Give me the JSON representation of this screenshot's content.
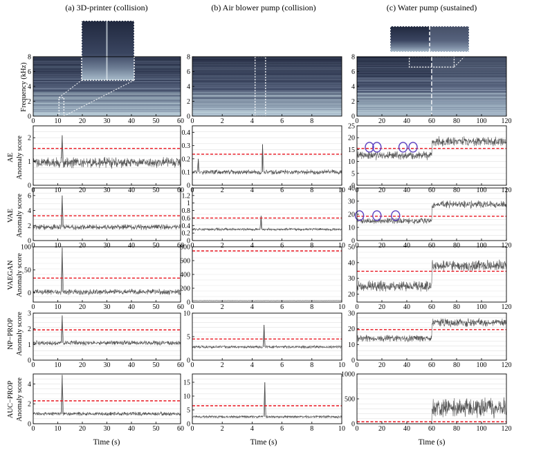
{
  "figure": {
    "column_titles": [
      "(a) 3D-printer (collision)",
      "(b) Air blower pump (collision)",
      "(c) Water pump (sustained)"
    ],
    "spectrogram_ylabel": "Frequency (kHz)",
    "row_ylabel_suffix": "Anomaly score",
    "x_label": "Time (s)"
  },
  "chart_data": [
    {
      "type": "heatmap",
      "column": 0,
      "row": "spectrogram",
      "ylabel": "Frequency (kHz)",
      "xlim": [
        0,
        60
      ],
      "xticks": [
        0,
        10,
        20,
        30,
        40,
        50,
        60
      ],
      "ylim": [
        0,
        8
      ],
      "yticks": [
        0,
        2,
        4,
        6,
        8
      ],
      "highlight_box": {
        "x": [
          10.5,
          12.5
        ],
        "y": [
          0,
          2.5
        ]
      },
      "zoom_inset": true
    },
    {
      "type": "heatmap",
      "column": 1,
      "row": "spectrogram",
      "xlim": [
        0,
        10
      ],
      "xticks": [
        0,
        2,
        4,
        6,
        8
      ],
      "ylim": [
        0,
        8
      ],
      "yticks": [
        0,
        2,
        4,
        6,
        8
      ],
      "highlight_box": {
        "x": [
          4.2,
          4.9
        ],
        "y": [
          0,
          8
        ]
      }
    },
    {
      "type": "heatmap",
      "column": 2,
      "row": "spectrogram",
      "xlim": [
        0,
        120
      ],
      "xticks": [
        0,
        20,
        40,
        60,
        80,
        100,
        120
      ],
      "ylim": [
        0,
        8
      ],
      "yticks": [
        0,
        2,
        4,
        6,
        8
      ],
      "divider_x": 60,
      "highlight_box": {
        "x": [
          42,
          78
        ],
        "y": [
          6.6,
          8
        ]
      },
      "zoom_inset": true
    },
    {
      "type": "line",
      "column": 0,
      "row": "AE",
      "ylabel": "AE",
      "xlim": [
        0,
        60
      ],
      "xticks": [
        0,
        10,
        20,
        30,
        40,
        50,
        60
      ],
      "ylim": [
        0,
        2.5
      ],
      "yticks": [
        0,
        1,
        2
      ],
      "threshold": 1.55,
      "baseline": 0.95,
      "noise": 0.18,
      "spikes": [
        {
          "x": 11.8,
          "y": 2.1
        }
      ]
    },
    {
      "type": "line",
      "column": 1,
      "row": "AE",
      "xlim": [
        0,
        10
      ],
      "xticks": [
        0,
        2,
        4,
        6,
        8,
        10
      ],
      "ylim": [
        0,
        0.45
      ],
      "yticks": [
        0,
        0.1,
        0.2,
        0.3,
        0.4
      ],
      "threshold": 0.235,
      "baseline": 0.1,
      "noise": 0.015,
      "spikes": [
        {
          "x": 0.4,
          "y": 0.2
        },
        {
          "x": 4.7,
          "y": 0.31
        }
      ]
    },
    {
      "type": "line",
      "column": 2,
      "row": "AE",
      "xlim": [
        0,
        120
      ],
      "xticks": [
        0,
        20,
        40,
        60,
        80,
        100,
        120
      ],
      "ylim": [
        0,
        25
      ],
      "yticks": [
        0,
        5,
        10,
        15,
        20,
        25
      ],
      "threshold": 15.5,
      "segments": [
        {
          "x": [
            0,
            60
          ],
          "baseline": 12.5,
          "noise": 1.5
        },
        {
          "x": [
            60,
            120
          ],
          "baseline": 18.5,
          "noise": 1.6
        }
      ],
      "circles": [
        {
          "x": 10,
          "y": 16
        },
        {
          "x": 16,
          "y": 16
        },
        {
          "x": 37,
          "y": 16
        },
        {
          "x": 45,
          "y": 16
        }
      ]
    },
    {
      "type": "line",
      "column": 0,
      "row": "VAE",
      "ylabel": "VAE",
      "xlim": [
        0,
        60
      ],
      "xticks": [
        0,
        10,
        20,
        30,
        40,
        50,
        60
      ],
      "ylim": [
        0,
        7
      ],
      "yticks": [
        0,
        2,
        4,
        6
      ],
      "threshold": 3.3,
      "baseline": 1.8,
      "noise": 0.3,
      "spikes": [
        {
          "x": 11.8,
          "y": 6.0
        }
      ]
    },
    {
      "type": "line",
      "column": 1,
      "row": "VAE",
      "xlim": [
        0,
        10
      ],
      "xticks": [
        0,
        2,
        4,
        6,
        8,
        10
      ],
      "ylim": [
        0,
        1.4
      ],
      "yticks": [
        0,
        0.2,
        0.4,
        0.6,
        0.8,
        1,
        1.2
      ],
      "threshold": 0.6,
      "baseline": 0.3,
      "noise": 0.03,
      "spikes": [
        {
          "x": 4.6,
          "y": 0.66
        }
      ]
    },
    {
      "type": "line",
      "column": 2,
      "row": "VAE",
      "xlim": [
        0,
        120
      ],
      "xticks": [
        0,
        20,
        40,
        60,
        80,
        100,
        120
      ],
      "ylim": [
        0,
        40
      ],
      "yticks": [
        0,
        10,
        20,
        30,
        40
      ],
      "threshold": 18.5,
      "segments": [
        {
          "x": [
            0,
            60
          ],
          "baseline": 15,
          "noise": 1.8
        },
        {
          "x": [
            60,
            120
          ],
          "baseline": 27.5,
          "noise": 2.4
        }
      ],
      "circles": [
        {
          "x": 2,
          "y": 19
        },
        {
          "x": 16,
          "y": 19
        },
        {
          "x": 31,
          "y": 19
        }
      ]
    },
    {
      "type": "line",
      "column": 0,
      "row": "VAEGAN",
      "ylabel": "VAEGAN",
      "xlim": [
        0,
        60
      ],
      "xticks": [
        0,
        10,
        20,
        30,
        40,
        50,
        60
      ],
      "ylim": [
        -20,
        100
      ],
      "yticks": [
        0,
        50,
        100
      ],
      "threshold": 32,
      "baseline": 2,
      "noise": 5,
      "spikes": [
        {
          "x": 11.8,
          "y": 98
        }
      ]
    },
    {
      "type": "line",
      "column": 1,
      "row": "VAEGAN",
      "xlim": [
        0,
        10
      ],
      "xticks": [
        0,
        2,
        4,
        6,
        8,
        10
      ],
      "ylim": [
        0,
        800
      ],
      "yticks": [
        0,
        200,
        400,
        600,
        800
      ],
      "threshold": 740,
      "baseline": 22,
      "noise": 1.5,
      "spikes": []
    },
    {
      "type": "line",
      "column": 2,
      "row": "VAEGAN",
      "xlim": [
        0,
        120
      ],
      "xticks": [
        0,
        20,
        40,
        60,
        80,
        100,
        120
      ],
      "ylim": [
        15,
        50
      ],
      "yticks": [
        20,
        30,
        40,
        50
      ],
      "threshold": 34.5,
      "segments": [
        {
          "x": [
            0,
            60
          ],
          "baseline": 25,
          "noise": 2.8
        },
        {
          "x": [
            60,
            120
          ],
          "baseline": 38,
          "noise": 3
        }
      ]
    },
    {
      "type": "line",
      "column": 0,
      "row": "NP-PROP",
      "ylabel": "NP−PROP",
      "xlim": [
        0,
        60
      ],
      "xticks": [
        0,
        10,
        20,
        30,
        40,
        50,
        60
      ],
      "ylim": [
        0,
        3
      ],
      "yticks": [
        0,
        1,
        2,
        3
      ],
      "threshold": 1.93,
      "baseline": 1.1,
      "noise": 0.12,
      "spikes": [
        {
          "x": 11.8,
          "y": 2.85
        }
      ]
    },
    {
      "type": "line",
      "column": 1,
      "row": "NP-PROP",
      "xlim": [
        0,
        10
      ],
      "xticks": [
        0,
        2,
        4,
        6,
        8,
        10
      ],
      "ylim": [
        0,
        10
      ],
      "yticks": [
        0,
        5,
        10
      ],
      "threshold": 4.5,
      "baseline": 2.8,
      "noise": 0.25,
      "spikes": [
        {
          "x": 4.8,
          "y": 7.5
        }
      ]
    },
    {
      "type": "line",
      "column": 2,
      "row": "NP-PROP",
      "xlim": [
        0,
        120
      ],
      "xticks": [
        0,
        20,
        40,
        60,
        80,
        100,
        120
      ],
      "ylim": [
        0,
        30
      ],
      "yticks": [
        0,
        10,
        20,
        30
      ],
      "threshold": 19.5,
      "segments": [
        {
          "x": [
            0,
            60
          ],
          "baseline": 14,
          "noise": 1.8
        },
        {
          "x": [
            60,
            120
          ],
          "baseline": 24,
          "noise": 2.2
        }
      ]
    },
    {
      "type": "line",
      "column": 0,
      "row": "AUC-PROP",
      "ylabel": "AUC−PROP",
      "xlim": [
        0,
        60
      ],
      "xticks": [
        0,
        10,
        20,
        30,
        40,
        50,
        60
      ],
      "ylim": [
        0,
        5
      ],
      "yticks": [
        0,
        2,
        4
      ],
      "threshold": 2.3,
      "baseline": 1.0,
      "noise": 0.15,
      "spikes": [
        {
          "x": 11.8,
          "y": 4.9
        }
      ]
    },
    {
      "type": "line",
      "column": 1,
      "row": "AUC-PROP",
      "xlim": [
        0,
        10
      ],
      "xticks": [
        0,
        2,
        4,
        6,
        8,
        10
      ],
      "ylim": [
        0,
        18
      ],
      "yticks": [
        0,
        5,
        10,
        15
      ],
      "threshold": 6.5,
      "baseline": 2.5,
      "noise": 0.4,
      "spikes": [
        {
          "x": 4.85,
          "y": 15
        }
      ]
    },
    {
      "type": "line",
      "column": 2,
      "row": "AUC-PROP",
      "xlim": [
        0,
        120
      ],
      "xticks": [
        0,
        20,
        40,
        60,
        80,
        100,
        120
      ],
      "ylim": [
        0,
        1000
      ],
      "yticks": [
        0,
        500,
        1000
      ],
      "threshold": 40,
      "segments": [
        {
          "x": [
            0,
            60
          ],
          "baseline": 0,
          "noise": 0
        },
        {
          "x": [
            60,
            120
          ],
          "baseline": 320,
          "noise": 160
        }
      ]
    }
  ]
}
